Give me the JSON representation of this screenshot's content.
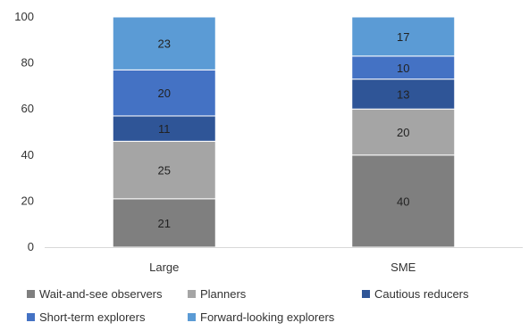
{
  "chart_data": {
    "type": "bar",
    "stacked": true,
    "categories": [
      "Large",
      "SME"
    ],
    "ylim": [
      0,
      100
    ],
    "yticks": [
      0,
      20,
      40,
      60,
      80,
      100
    ],
    "grid": false,
    "legend_position": "bottom",
    "series": [
      {
        "name": "Wait-and-see observers",
        "values": [
          21,
          40
        ],
        "color": "#7f7f7f"
      },
      {
        "name": "Planners",
        "values": [
          25,
          20
        ],
        "color": "#a5a5a5"
      },
      {
        "name": "Cautious reducers",
        "values": [
          11,
          13
        ],
        "color": "#2f5597"
      },
      {
        "name": "Short-term explorers",
        "values": [
          20,
          10
        ],
        "color": "#4472c4"
      },
      {
        "name": "Forward-looking explorers",
        "values": [
          23,
          17
        ],
        "color": "#5b9bd5"
      }
    ]
  }
}
